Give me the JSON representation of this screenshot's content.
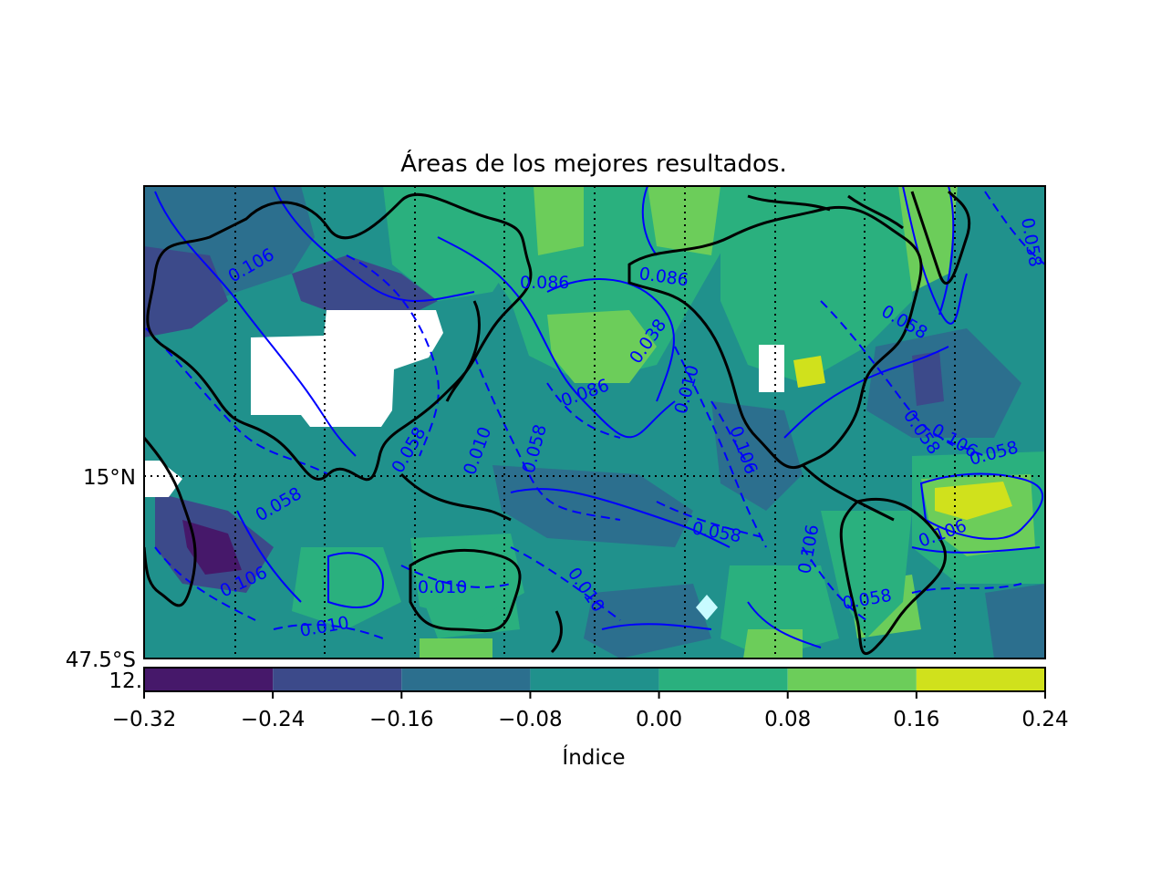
{
  "map": {
    "title": "Áreas de los mejores resultados.",
    "lat_labels": [
      "15°N",
      "47.5°S"
    ],
    "contour_labels": [
      "0.086",
      "0.086",
      "0.038",
      "0.086",
      "0.010",
      "0.058",
      "0.010",
      "0.058",
      "0.106",
      "0.058",
      "0.106",
      "0.058",
      "0.010",
      "0.010",
      "0.058",
      "0.010",
      "0.106",
      "0.106",
      "0.058",
      "0.106",
      "0.058",
      "0.058",
      "0.058",
      "0.106"
    ],
    "colors": {
      "contour": "#0000ff",
      "coastline": "#000000",
      "missing": "#ffffff",
      "marker": "#c8fbff"
    }
  },
  "colorbar": {
    "label": "Índice",
    "side_label": "12.",
    "ticks": [
      "−0.32",
      "−0.24",
      "−0.16",
      "−0.08",
      "0.00",
      "0.08",
      "0.16",
      "0.24"
    ],
    "bins": [
      {
        "from": -0.32,
        "to": -0.24,
        "color": "#46186a"
      },
      {
        "from": -0.24,
        "to": -0.16,
        "color": "#3c4a8a"
      },
      {
        "from": -0.16,
        "to": -0.08,
        "color": "#2c6f8e"
      },
      {
        "from": -0.08,
        "to": 0.0,
        "color": "#20918c"
      },
      {
        "from": 0.0,
        "to": 0.08,
        "color": "#2ab07e"
      },
      {
        "from": 0.08,
        "to": 0.16,
        "color": "#6ccd5a"
      },
      {
        "from": 0.16,
        "to": 0.24,
        "color": "#d0e11c"
      }
    ]
  }
}
